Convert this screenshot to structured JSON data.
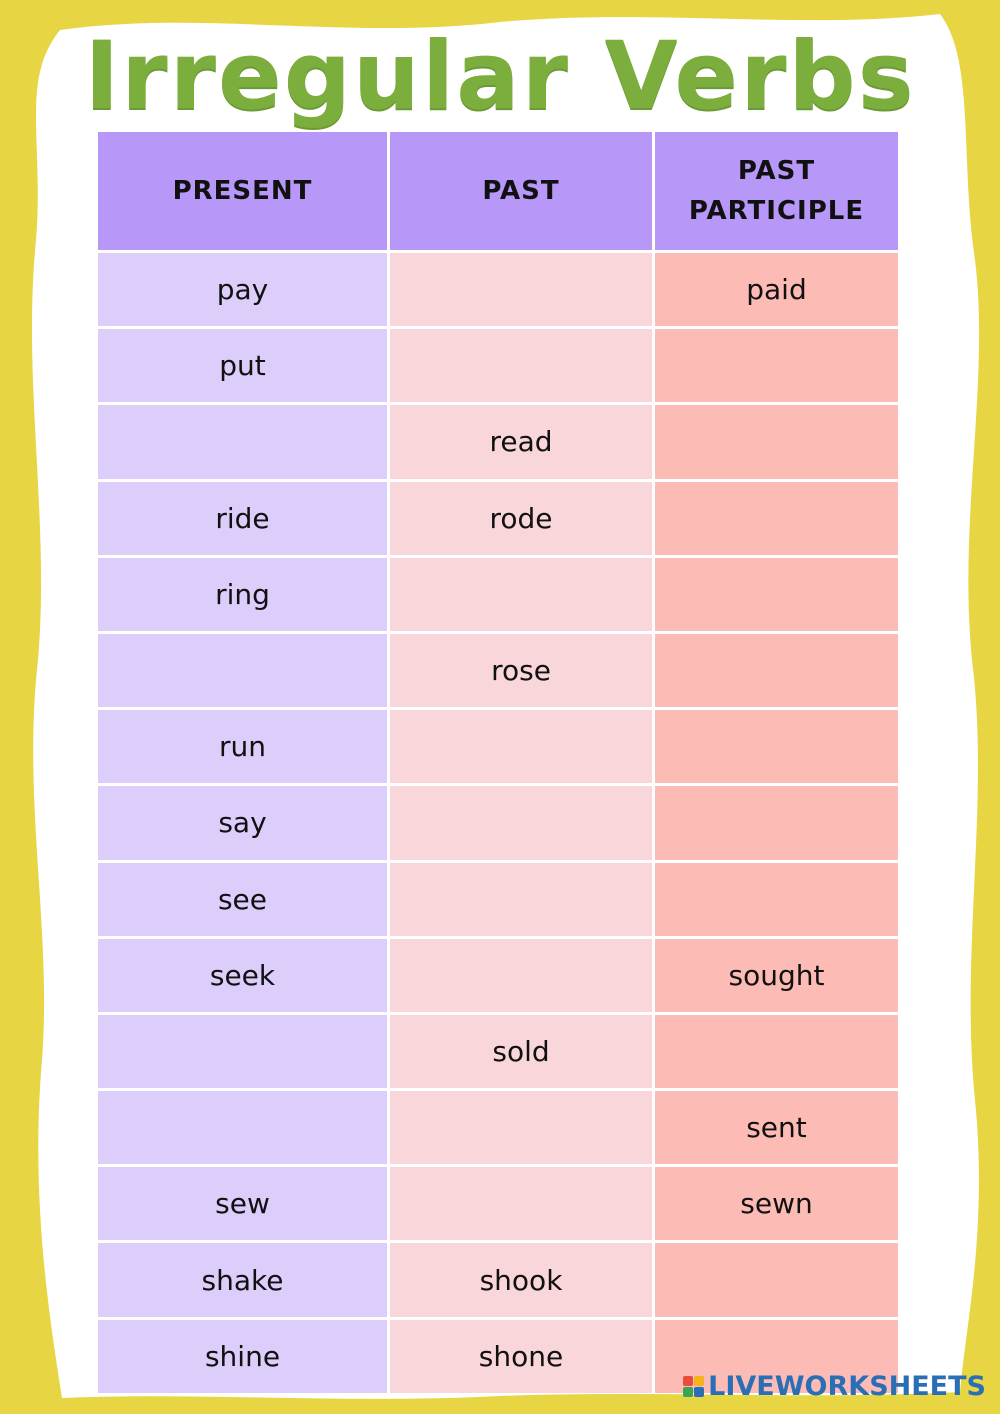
{
  "title": "Irregular Verbs",
  "headers": [
    "PRESENT",
    "PAST",
    "PAST\nPARTICIPLE"
  ],
  "rows": [
    [
      "pay",
      "",
      "paid"
    ],
    [
      "put",
      "",
      ""
    ],
    [
      "",
      "read",
      ""
    ],
    [
      "ride",
      "rode",
      ""
    ],
    [
      "ring",
      "",
      ""
    ],
    [
      "",
      "rose",
      ""
    ],
    [
      "run",
      "",
      ""
    ],
    [
      "say",
      "",
      ""
    ],
    [
      "see",
      "",
      ""
    ],
    [
      "seek",
      "",
      "sought"
    ],
    [
      "",
      "sold",
      ""
    ],
    [
      "",
      "",
      "sent"
    ],
    [
      "sew",
      "",
      "sewn"
    ],
    [
      "shake",
      "shook",
      ""
    ],
    [
      "shine",
      "shone",
      ""
    ]
  ],
  "colors": {
    "background": "#e8d544",
    "title": "#7cae3e",
    "header": "#b797f8",
    "present_column": "#dccdfb",
    "past_column": "#f9d6da",
    "participle_column": "#fdbbb6"
  },
  "brand": {
    "name": "LIVEWORKSHEETS",
    "icon": "liveworksheets-logo-icon"
  }
}
